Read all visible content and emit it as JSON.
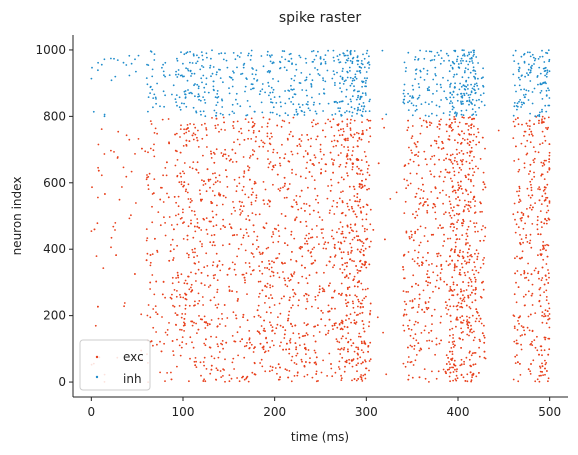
{
  "chart_data": {
    "type": "scatter",
    "title": "spike raster",
    "xlabel": "time (ms)",
    "ylabel": "neuron index",
    "xlim": [
      -20,
      520
    ],
    "ylim": [
      -45,
      1045
    ],
    "xticks": [
      0,
      100,
      200,
      300,
      400,
      500
    ],
    "yticks": [
      0,
      200,
      400,
      600,
      800,
      1000
    ],
    "grid": false,
    "legend": "lower-left",
    "series": [
      {
        "name": "exc",
        "color": "#e8401c",
        "neuron_range": [
          0,
          800
        ],
        "time_range": [
          0,
          500
        ],
        "burst_windows_ms": [
          [
            270,
            300
          ],
          [
            390,
            420
          ],
          [
            490,
            500
          ]
        ],
        "quiet_windows_ms": [
          [
            305,
            340
          ],
          [
            430,
            460
          ]
        ]
      },
      {
        "name": "inh",
        "color": "#1f8ccb",
        "neuron_range": [
          800,
          1000
        ],
        "time_range": [
          0,
          500
        ],
        "burst_windows_ms": [
          [
            270,
            300
          ],
          [
            390,
            420
          ],
          [
            490,
            500
          ]
        ],
        "quiet_windows_ms": [
          [
            305,
            340
          ],
          [
            430,
            460
          ]
        ]
      }
    ]
  }
}
